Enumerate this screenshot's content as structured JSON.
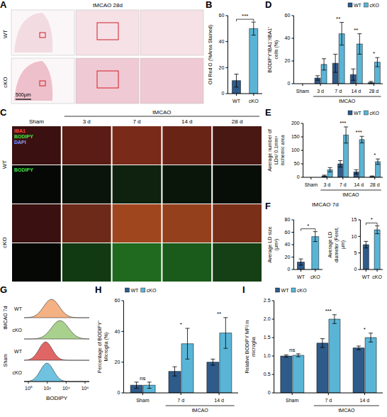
{
  "images": [
    {
      "label": "A",
      "title": "tMCAO 28d",
      "rows": [
        "WT",
        "cKO"
      ],
      "scale_bar": "500μm"
    },
    {
      "label": "C",
      "group_label": "tMCAO",
      "columns": [
        "Sham",
        "3 d",
        "7 d",
        "14 d",
        "28 d"
      ],
      "rows": [
        "WT",
        "cKO"
      ],
      "channels": [
        {
          "name": "IBA1",
          "color": "#ff4a40"
        },
        {
          "name": "BODIPY",
          "color": "#40e040"
        },
        {
          "name": "DAPI",
          "color": "#7f9bff"
        }
      ]
    },
    {
      "label": "G",
      "x_label": "BODIPY",
      "xticks": [
        "10⁰",
        "10²",
        "10⁴",
        "10⁶"
      ],
      "groups": [
        {
          "name": "tMCAO 7d",
          "traces": [
            {
              "name": "WT",
              "color": "#f4b183"
            },
            {
              "name": "cKO",
              "color": "#a9d18e"
            }
          ]
        },
        {
          "name": "Sham",
          "traces": [
            {
              "name": "WT",
              "color": "#e06666"
            },
            {
              "name": "cKO",
              "color": "#6fc3e0"
            }
          ]
        }
      ]
    }
  ],
  "chart_data": [
    {
      "label": "B",
      "type": "bar",
      "y_label": "Oil Red O (%Area Stained)",
      "categories": [
        "WT",
        "cKO"
      ],
      "values": [
        10,
        50
      ],
      "errors": [
        5,
        5
      ],
      "colors": [
        "#2e5b8a",
        "#5ab4d6"
      ],
      "ylim": [
        0,
        60
      ],
      "yticks": [
        0,
        20,
        40,
        60
      ],
      "annotation": "***"
    },
    {
      "label": "D",
      "type": "bar",
      "y_label": "BODIPY⁺IBA1⁺/IBA1⁺ cells (%)",
      "categories": [
        "Sham",
        "3 d",
        "7 d",
        "14 d",
        "28 d"
      ],
      "group_label": "tMCAO",
      "group_categories": [
        "3 d",
        "7 d",
        "14 d",
        "28 d"
      ],
      "series": [
        {
          "name": "WT",
          "color": "#2e5b8a",
          "values": [
            0,
            5,
            18,
            8,
            1
          ],
          "errors": [
            0,
            2,
            8,
            5,
            1
          ]
        },
        {
          "name": "cKO",
          "color": "#5ab4d6",
          "values": [
            0,
            17,
            44,
            35,
            19
          ],
          "errors": [
            0,
            5,
            10,
            9,
            4
          ]
        }
      ],
      "annotations": [
        null,
        null,
        "**",
        "**",
        "*"
      ],
      "ylim": [
        0,
        60
      ],
      "yticks": [
        0,
        20,
        40,
        60
      ],
      "legend": "top-right"
    },
    {
      "label": "E",
      "type": "bar",
      "y_label": "Average number of LDs/ 0.1mm² ischemic area",
      "categories": [
        "Sham",
        "3 d",
        "7 d",
        "14 d",
        "28 d"
      ],
      "group_label": "tMCAO",
      "group_categories": [
        "3 d",
        "7 d",
        "14 d",
        "28 d"
      ],
      "series": [
        {
          "name": "WT",
          "color": "#2e5b8a",
          "values": [
            0,
            5,
            50,
            20,
            3
          ],
          "errors": [
            0,
            3,
            12,
            8,
            2
          ]
        },
        {
          "name": "cKO",
          "color": "#5ab4d6",
          "values": [
            0,
            28,
            157,
            140,
            58
          ],
          "errors": [
            0,
            8,
            30,
            12,
            10
          ]
        }
      ],
      "annotations": [
        null,
        null,
        "***",
        "***",
        "*"
      ],
      "ylim": [
        0,
        200
      ],
      "yticks": [
        0,
        50,
        100,
        150,
        200
      ],
      "legend": "top-right"
    },
    {
      "label": "F",
      "title": "tMCAO 7d",
      "type": "bar",
      "y_label": "Average LD size (μm²)",
      "categories": [
        "WT",
        "cKO"
      ],
      "values": [
        12,
        53
      ],
      "errors": [
        5,
        8
      ],
      "colors": [
        "#2e5b8a",
        "#5ab4d6"
      ],
      "ylim": [
        0,
        80
      ],
      "yticks": [
        0,
        20,
        40,
        60,
        80
      ],
      "annotation": "*"
    },
    {
      "type": "bar",
      "y_label": "Average LD diameter (Feret, μm)",
      "categories": [
        "WT",
        "cKO"
      ],
      "values": [
        7.5,
        12
      ],
      "errors": [
        1,
        1.2
      ],
      "colors": [
        "#2e5b8a",
        "#5ab4d6"
      ],
      "ylim": [
        0,
        15
      ],
      "yticks": [
        0,
        5,
        10,
        15
      ],
      "annotation": "*"
    },
    {
      "label": "H",
      "type": "bar",
      "y_label": "Percentage of BODIPY⁺ Microglia (%)",
      "categories": [
        "Sham",
        "7 d",
        "14 d"
      ],
      "group_label": "tMCAO",
      "group_categories": [
        "7 d",
        "14 d"
      ],
      "series": [
        {
          "name": "WT",
          "color": "#2e5b8a",
          "values": [
            5,
            14,
            20
          ],
          "errors": [
            2,
            3,
            2
          ]
        },
        {
          "name": "cKO",
          "color": "#5ab4d6",
          "values": [
            5,
            32,
            39
          ],
          "errors": [
            2,
            10,
            10
          ]
        }
      ],
      "annotations": [
        "ns",
        "*",
        "**"
      ],
      "ylim": [
        0,
        60
      ],
      "yticks": [
        0,
        20,
        40,
        60
      ],
      "legend": "top-left"
    },
    {
      "label": "I",
      "type": "bar",
      "y_label": "Relative BODIPY MFI in microglia",
      "categories": [
        "Sham",
        "7 d",
        "14 d"
      ],
      "group_label": "tMCAO",
      "group_categories": [
        "7 d",
        "14 d"
      ],
      "series": [
        {
          "name": "WT",
          "color": "#2e5b8a",
          "values": [
            1.0,
            1.35,
            1.22
          ],
          "errors": [
            0.03,
            0.12,
            0.05
          ]
        },
        {
          "name": "cKO",
          "color": "#5ab4d6",
          "values": [
            1.02,
            2.0,
            1.5
          ],
          "errors": [
            0.04,
            0.12,
            0.12
          ]
        }
      ],
      "annotations": [
        "ns",
        "***",
        "*"
      ],
      "ylim": [
        0,
        2.5
      ],
      "yticks": [
        0,
        0.5,
        {
          "value": 1,
          "label": "1.0"
        },
        1.5,
        {
          "value": 2,
          "label": "2.0"
        },
        2.5
      ],
      "legend": "top-left"
    }
  ]
}
